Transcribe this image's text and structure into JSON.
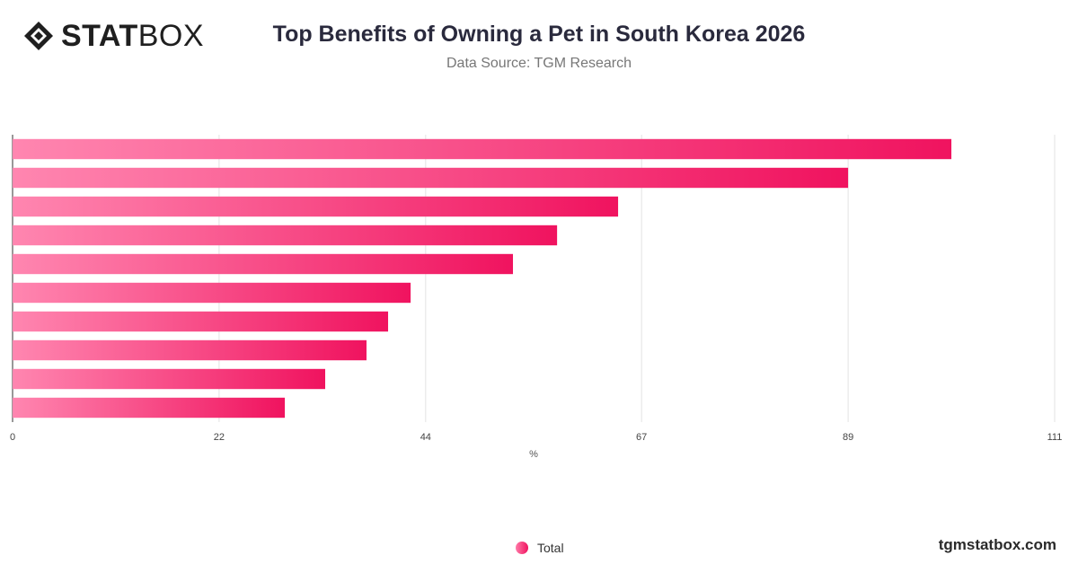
{
  "brand": {
    "logo_bold": "STAT",
    "logo_light": "BOX",
    "footer": "tgmstatbox.com"
  },
  "header": {
    "title": "Top Benefits of Owning a Pet in South Korea 2026",
    "subtitle": "Data Source: TGM Research"
  },
  "legend": {
    "label": "Total"
  },
  "colors": {
    "bar_start": "#ff86b0",
    "bar_end": "#f0135f",
    "grid": "#e3e3e3",
    "axis": "#555555"
  },
  "chart_data": {
    "type": "bar",
    "orientation": "horizontal",
    "values": [
      100,
      89,
      64.5,
      58,
      53.3,
      42.4,
      40,
      37.7,
      33.3,
      29
    ],
    "x_ticks": [
      0,
      22,
      44,
      67,
      89,
      111
    ],
    "xlim": [
      0,
      111
    ],
    "xlabel": "%",
    "legend_position": "bottom-center",
    "series": [
      {
        "name": "Total"
      }
    ],
    "grid": true
  }
}
